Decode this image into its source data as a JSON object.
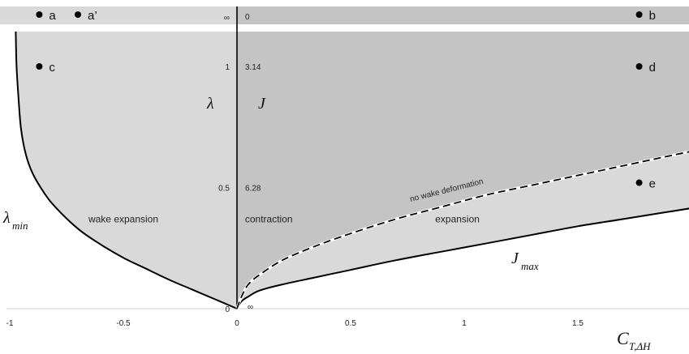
{
  "chart_data": {
    "type": "area",
    "title": "",
    "x_axis": {
      "label_main": "C",
      "label_sub": "T,ΔH",
      "range": [
        -1,
        2
      ],
      "ticks": [
        {
          "value": -1,
          "label": "-1"
        },
        {
          "value": -0.5,
          "label": "-0.5"
        },
        {
          "value": 0,
          "label": "0"
        },
        {
          "value": 0.5,
          "label": "0.5"
        },
        {
          "value": 1,
          "label": "1"
        },
        {
          "value": 1.5,
          "label": "1.5"
        }
      ]
    },
    "lambda_axis": {
      "label": "λ",
      "ticks": [
        {
          "value": 1,
          "label": "1"
        },
        {
          "value": 0.5,
          "label": "0.5"
        },
        {
          "value": 0,
          "label": "0"
        },
        {
          "value": "inf",
          "label": "∞"
        }
      ]
    },
    "j_axis": {
      "label": "J",
      "ticks": [
        {
          "value": 3.14,
          "label": "3.14"
        },
        {
          "value": 6.28,
          "label": "6.28"
        },
        {
          "value": 0,
          "label": "0"
        },
        {
          "value": "inf",
          "label": "∞"
        }
      ],
      "origin_label": "∞"
    },
    "curves": {
      "lambda_min": {
        "label_main": "λ",
        "label_sub": "min",
        "points": [
          [
            0,
            0
          ],
          [
            -0.1,
            0.04
          ],
          [
            -0.2,
            0.08
          ],
          [
            -0.3,
            0.12
          ],
          [
            -0.4,
            0.165
          ],
          [
            -0.5,
            0.21
          ],
          [
            -0.6,
            0.265
          ],
          [
            -0.7,
            0.33
          ],
          [
            -0.8,
            0.42
          ],
          [
            -0.85,
            0.48
          ],
          [
            -0.9,
            0.56
          ],
          [
            -0.93,
            0.64
          ],
          [
            -0.95,
            0.74
          ],
          [
            -0.96,
            0.85
          ],
          [
            -0.97,
            1.0
          ]
        ]
      },
      "j_max": {
        "label_main": "J",
        "label_sub": "max",
        "points": [
          [
            0,
            0
          ],
          [
            0.02,
            0.03
          ],
          [
            0.05,
            0.05
          ],
          [
            0.1,
            0.075
          ],
          [
            0.2,
            0.1
          ],
          [
            0.35,
            0.13
          ],
          [
            0.5,
            0.16
          ],
          [
            0.7,
            0.2
          ],
          [
            0.9,
            0.235
          ],
          [
            1.1,
            0.27
          ],
          [
            1.3,
            0.305
          ],
          [
            1.5,
            0.34
          ],
          [
            1.7,
            0.37
          ],
          [
            1.9,
            0.4
          ],
          [
            2.0,
            0.415
          ]
        ]
      },
      "no_wake_deformation": {
        "label": "no wake deformation",
        "points": [
          [
            0,
            0
          ],
          [
            0.02,
            0.05
          ],
          [
            0.05,
            0.1
          ],
          [
            0.1,
            0.14
          ],
          [
            0.2,
            0.2
          ],
          [
            0.35,
            0.26
          ],
          [
            0.5,
            0.31
          ],
          [
            0.7,
            0.37
          ],
          [
            0.9,
            0.42
          ],
          [
            1.1,
            0.47
          ],
          [
            1.3,
            0.51
          ],
          [
            1.5,
            0.55
          ],
          [
            1.7,
            0.59
          ],
          [
            1.9,
            0.63
          ],
          [
            2.0,
            0.65
          ]
        ]
      }
    },
    "regions": [
      {
        "label": "wake expansion",
        "x": -0.5,
        "y": 0.3
      },
      {
        "label": "contraction",
        "x": 0.14,
        "y": 0.3
      },
      {
        "label": "expansion",
        "x": 0.97,
        "y": 0.3
      }
    ],
    "points": [
      {
        "label": "a",
        "x": -0.87,
        "y": "inf"
      },
      {
        "label": "a’",
        "x": -0.7,
        "y": "inf"
      },
      {
        "label": "b",
        "x": 1.77,
        "y": "inf"
      },
      {
        "label": "c",
        "x": -0.87,
        "y": 1.0
      },
      {
        "label": "d",
        "x": 1.77,
        "y": 1.0
      },
      {
        "label": "e",
        "x": 1.77,
        "y": 0.52
      }
    ],
    "colors": {
      "light_region": "#d9d9d9",
      "dark_region": "#c4c4c4",
      "top_band_left": "#d9d9d9",
      "top_band_right": "#c4c4c4",
      "curve": "#000000",
      "dashed_outline": "#ffffff"
    }
  }
}
